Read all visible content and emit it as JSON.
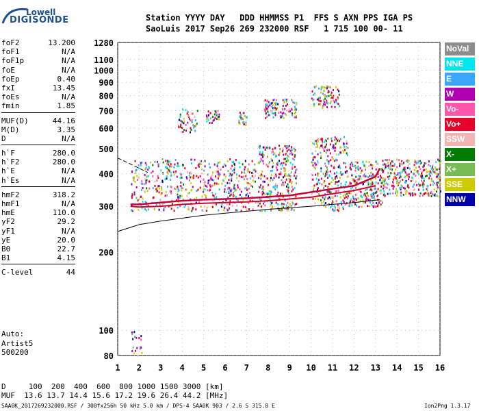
{
  "logo": {
    "line1": "Lowell",
    "line2": "DIGISONDE"
  },
  "header": {
    "labels": "Station YYYY DAY   DDD HHMMSS P1  FFS S AXN PPS IGA PS",
    "values": "SaoLuis 2017 Sep26 269 232000 RSF   1 715 100 00- 11"
  },
  "params": [
    {
      "name": "foF2",
      "value": "13.200"
    },
    {
      "name": "foF1",
      "value": "N/A"
    },
    {
      "name": "foF1p",
      "value": "N/A"
    },
    {
      "name": "foE",
      "value": "N/A"
    },
    {
      "name": "foEp",
      "value": "0.40"
    },
    {
      "name": "fxI",
      "value": "13.45"
    },
    {
      "name": "foEs",
      "value": "N/A"
    },
    {
      "name": "fmin",
      "value": "1.85"
    },
    {
      "name": "MUF(D)",
      "value": "44.16"
    },
    {
      "name": "M(D)",
      "value": "3.35"
    },
    {
      "name": "D",
      "value": "N/A"
    },
    {
      "name": "h`F",
      "value": "280.0"
    },
    {
      "name": "h`F2",
      "value": "280.0"
    },
    {
      "name": "h`E",
      "value": "N/A"
    },
    {
      "name": "h`Es",
      "value": "N/A"
    },
    {
      "name": "hmF2",
      "value": "318.2"
    },
    {
      "name": "hmF1",
      "value": "N/A"
    },
    {
      "name": "hmE",
      "value": "110.0"
    },
    {
      "name": "yF2",
      "value": "29.2"
    },
    {
      "name": "yF1",
      "value": "N/A"
    },
    {
      "name": "yE",
      "value": "20.0"
    },
    {
      "name": "B0",
      "value": "22.7"
    },
    {
      "name": "B1",
      "value": "4.15"
    },
    {
      "name": "C-level",
      "value": "44"
    }
  ],
  "auto": {
    "line1": "Auto:",
    "line2": "Artist5",
    "line3": "500200"
  },
  "legend": [
    {
      "label": "NoVal",
      "color": "#8c8c8c"
    },
    {
      "label": "NNE",
      "color": "#00e5ee"
    },
    {
      "label": "E",
      "color": "#3aa6ff"
    },
    {
      "label": "W",
      "color": "#b000b0"
    },
    {
      "label": "Vo-",
      "color": "#ff55aa"
    },
    {
      "label": "Vo+",
      "color": "#e8002a"
    },
    {
      "label": "SSW",
      "color": "#f4b4b4"
    },
    {
      "label": "X-",
      "color": "#007a00"
    },
    {
      "label": "X+",
      "color": "#77bb55"
    },
    {
      "label": "SSE",
      "color": "#cccc00"
    },
    {
      "label": "NNW",
      "color": "#0000aa"
    }
  ],
  "footer": {
    "line1": "D     100  200  400  600  800 1000 1500 3000 [km]",
    "line2": "MUF  13.6 13.7 14.4 15.6 17.2 19.6 26.4 44.2 [MHz]",
    "source": "SAA0K_2017269232000.RSF / 300fx256h 50 kHz 5.0 km / DPS-4 SAA0K 903 / 2.6 S 315.8 E",
    "version": "Ion2Png 1.3.17"
  },
  "chart_data": {
    "type": "scatter",
    "xlim": [
      1,
      16
    ],
    "ylim": [
      80,
      1280
    ],
    "y_scale": "log",
    "x_ticks": [
      "1",
      "2",
      "3",
      "4",
      "5",
      "6",
      "7",
      "8",
      "9",
      "10",
      "11",
      "12",
      "13",
      "14",
      "15",
      "16"
    ],
    "y_ticks": [
      "80",
      "100",
      "200",
      "300",
      "400",
      "500",
      "600",
      "700",
      "800",
      "900",
      "1000",
      "1100",
      "1280"
    ],
    "grid": true,
    "series": [
      {
        "name": "O-trace",
        "x": [
          1.6,
          2,
          3,
          4,
          5,
          6,
          7,
          8,
          9,
          10,
          11,
          12,
          13,
          13.2
        ],
        "y": [
          305,
          305,
          310,
          315,
          318,
          320,
          322,
          326,
          330,
          340,
          350,
          360,
          390,
          420
        ]
      },
      {
        "name": "X-trace",
        "x": [
          1.6,
          2,
          3,
          4,
          5,
          6,
          7,
          8,
          9,
          10,
          11,
          12,
          13
        ],
        "y": [
          300,
          298,
          300,
          305,
          308,
          310,
          312,
          315,
          320,
          325,
          335,
          345,
          360
        ]
      },
      {
        "name": "Profile",
        "x": [
          1,
          2,
          3,
          4,
          5,
          6,
          7,
          8,
          9,
          10,
          11,
          12,
          13.2
        ],
        "y": [
          240,
          255,
          263,
          270,
          277,
          282,
          287,
          292,
          296,
          300,
          305,
          310,
          318
        ]
      },
      {
        "name": "Model",
        "x": [
          1,
          1.5,
          2,
          2.4
        ],
        "y": [
          460,
          440,
          420,
          405
        ]
      }
    ],
    "clusters": [
      {
        "x0": 1.6,
        "x1": 7.4,
        "y0": 290,
        "y1": 460,
        "n": 520
      },
      {
        "x0": 7.5,
        "x1": 9.3,
        "y0": 290,
        "y1": 520,
        "n": 300
      },
      {
        "x0": 10,
        "x1": 11.7,
        "y0": 290,
        "y1": 560,
        "n": 280
      },
      {
        "x0": 11.7,
        "x1": 13.3,
        "y0": 300,
        "y1": 450,
        "n": 220
      },
      {
        "x0": 13.3,
        "x1": 16,
        "y0": 330,
        "y1": 460,
        "n": 320
      },
      {
        "x0": 3.8,
        "x1": 4.7,
        "y0": 580,
        "y1": 720,
        "n": 50
      },
      {
        "x0": 5.1,
        "x1": 5.7,
        "y0": 630,
        "y1": 710,
        "n": 30
      },
      {
        "x0": 6.6,
        "x1": 7,
        "y0": 620,
        "y1": 700,
        "n": 25
      },
      {
        "x0": 7.8,
        "x1": 9.3,
        "y0": 660,
        "y1": 780,
        "n": 110
      },
      {
        "x0": 10,
        "x1": 11.3,
        "y0": 720,
        "y1": 880,
        "n": 90
      },
      {
        "x0": 1.6,
        "x1": 2.1,
        "y0": 80,
        "y1": 100,
        "n": 20
      }
    ]
  }
}
